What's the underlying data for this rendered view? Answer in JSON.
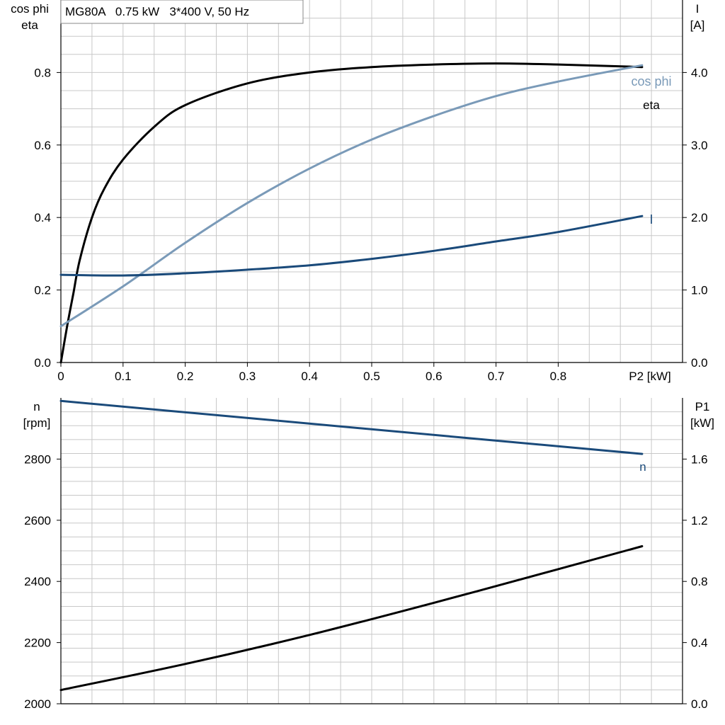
{
  "title": "MG80A   0.75 kW   3*400 V, 50 Hz",
  "colors": {
    "eta": "#000000",
    "cos_phi": "#7a9ab8",
    "I": "#1a4a7a",
    "n": "#1a4a7a",
    "P1": "#000000"
  },
  "chart_data": [
    {
      "type": "line",
      "panel": "top",
      "x_label": "P2 [kW]",
      "x_range": [
        0,
        1.0
      ],
      "x_ticks": [
        "0",
        "0.1",
        "0.2",
        "0.3",
        "0.4",
        "0.5",
        "0.6",
        "0.7",
        "0.8"
      ],
      "left_axis": {
        "label": [
          "cos phi",
          "eta"
        ],
        "range": [
          0,
          1.0
        ],
        "ticks": [
          "0.0",
          "0.2",
          "0.4",
          "0.6",
          "0.8"
        ]
      },
      "right_axis": {
        "label": [
          "I",
          "[A]"
        ],
        "range": [
          0,
          5.0
        ],
        "ticks": [
          "0.0",
          "1.0",
          "2.0",
          "3.0",
          "4.0"
        ]
      },
      "grid": true,
      "series": [
        {
          "name": "eta",
          "axis": "left",
          "x": [
            0,
            0.01,
            0.02,
            0.03,
            0.05,
            0.07,
            0.1,
            0.15,
            0.2,
            0.3,
            0.4,
            0.5,
            0.6,
            0.7,
            0.8,
            0.935
          ],
          "y": [
            0,
            0.1,
            0.19,
            0.28,
            0.4,
            0.48,
            0.56,
            0.65,
            0.71,
            0.77,
            0.8,
            0.815,
            0.822,
            0.825,
            0.822,
            0.815
          ]
        },
        {
          "name": "cos phi",
          "axis": "left",
          "x": [
            0,
            0.1,
            0.2,
            0.3,
            0.4,
            0.5,
            0.6,
            0.7,
            0.8,
            0.935
          ],
          "y": [
            0.1,
            0.21,
            0.33,
            0.44,
            0.535,
            0.615,
            0.68,
            0.735,
            0.775,
            0.82
          ]
        },
        {
          "name": "I",
          "axis": "right",
          "x": [
            0,
            0.1,
            0.2,
            0.3,
            0.4,
            0.5,
            0.6,
            0.7,
            0.8,
            0.935
          ],
          "y": [
            1.21,
            1.2,
            1.23,
            1.28,
            1.34,
            1.43,
            1.54,
            1.67,
            1.8,
            2.02
          ]
        }
      ]
    },
    {
      "type": "line",
      "panel": "bottom",
      "x_range": [
        0,
        1.0
      ],
      "left_axis": {
        "label": [
          "n",
          "[rpm]"
        ],
        "range": [
          2000,
          3000
        ],
        "ticks": [
          "2000",
          "2200",
          "2400",
          "2600",
          "2800"
        ]
      },
      "right_axis": {
        "label": [
          "P1",
          "[kW]"
        ],
        "range": [
          0,
          2.0
        ],
        "ticks": [
          "0.0",
          "0.4",
          "0.8",
          "1.2",
          "1.6"
        ]
      },
      "grid": true,
      "series": [
        {
          "name": "n",
          "axis": "left",
          "x": [
            0,
            0.935
          ],
          "y": [
            2990,
            2817
          ]
        },
        {
          "axis": "right",
          "x": [
            0,
            0.2,
            0.4,
            0.6,
            0.8,
            0.935
          ],
          "y": [
            0.09,
            0.26,
            0.45,
            0.66,
            0.88,
            1.03
          ]
        }
      ]
    }
  ]
}
